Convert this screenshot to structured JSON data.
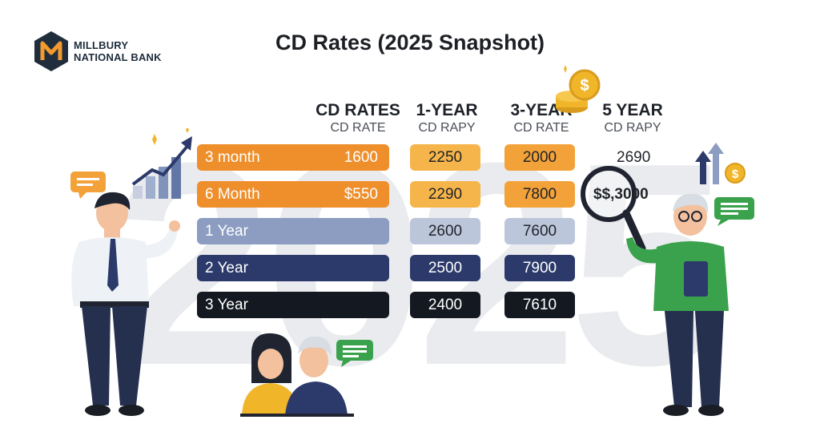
{
  "logo": {
    "line1": "MILLBURY",
    "line2": "NATIONAL BANK",
    "letter": "M"
  },
  "title": "CD Rates (2025 Snapshot)",
  "background_year": "2025",
  "columns": [
    {
      "label": "CD RATES",
      "sub": "CD RATE"
    },
    {
      "label": "1-YEAR",
      "sub": "CD RAPY"
    },
    {
      "label": "3-YEAR",
      "sub": "CD RATE"
    },
    {
      "label": "5 YEAR",
      "sub": "CD RAPY"
    }
  ],
  "rows": [
    {
      "term": "3 month",
      "rate": "1600",
      "one_year": "2250",
      "three_year": "2000",
      "five_year": "2690"
    },
    {
      "term": "6 Month",
      "rate": "$550",
      "one_year": "2290",
      "three_year": "7800",
      "five_year": "$$,3000"
    },
    {
      "term": "1 Year",
      "rate": "",
      "one_year": "2600",
      "three_year": "7600",
      "five_year": ""
    },
    {
      "term": "2 Year",
      "rate": "",
      "one_year": "2500",
      "three_year": "7900",
      "five_year": ""
    },
    {
      "term": "3 Year",
      "rate": "",
      "one_year": "2400",
      "three_year": "7610",
      "five_year": ""
    }
  ],
  "colors": {
    "orange": "#ee8f2c",
    "orange_light": "#f6b54a",
    "slate_light": "#8c9dc1",
    "slate_pale": "#bcc6db",
    "navy": "#2c3a6b",
    "black": "#141820",
    "green": "#3aa24d",
    "gold": "#f1b52a"
  }
}
